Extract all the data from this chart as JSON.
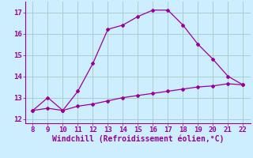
{
  "xlabel": "Windchill (Refroidissement éolien,°C)",
  "line1_x": [
    8,
    9,
    10,
    11,
    12,
    13,
    14,
    15,
    16,
    17,
    18,
    19,
    20,
    21,
    22
  ],
  "line1_y": [
    12.4,
    13.0,
    12.4,
    13.3,
    14.6,
    16.2,
    16.4,
    16.8,
    17.1,
    17.1,
    16.4,
    15.5,
    14.8,
    14.0,
    13.6
  ],
  "line2_x": [
    8,
    9,
    10,
    11,
    12,
    13,
    14,
    15,
    16,
    17,
    18,
    19,
    20,
    21,
    22
  ],
  "line2_y": [
    12.4,
    12.5,
    12.4,
    12.6,
    12.7,
    12.85,
    13.0,
    13.1,
    13.2,
    13.3,
    13.4,
    13.5,
    13.55,
    13.65,
    13.6
  ],
  "line_color": "#990099",
  "bg_color": "#cceeff",
  "grid_color": "#aacccc",
  "xlim": [
    7.5,
    22.5
  ],
  "ylim": [
    11.8,
    17.5
  ],
  "xticks": [
    8,
    9,
    10,
    11,
    12,
    13,
    14,
    15,
    16,
    17,
    18,
    19,
    20,
    21,
    22
  ],
  "yticks": [
    12,
    13,
    14,
    15,
    16,
    17
  ],
  "tick_fontsize": 6.5,
  "xlabel_fontsize": 7,
  "marker": "D",
  "markersize": 2.0,
  "linewidth": 0.9
}
